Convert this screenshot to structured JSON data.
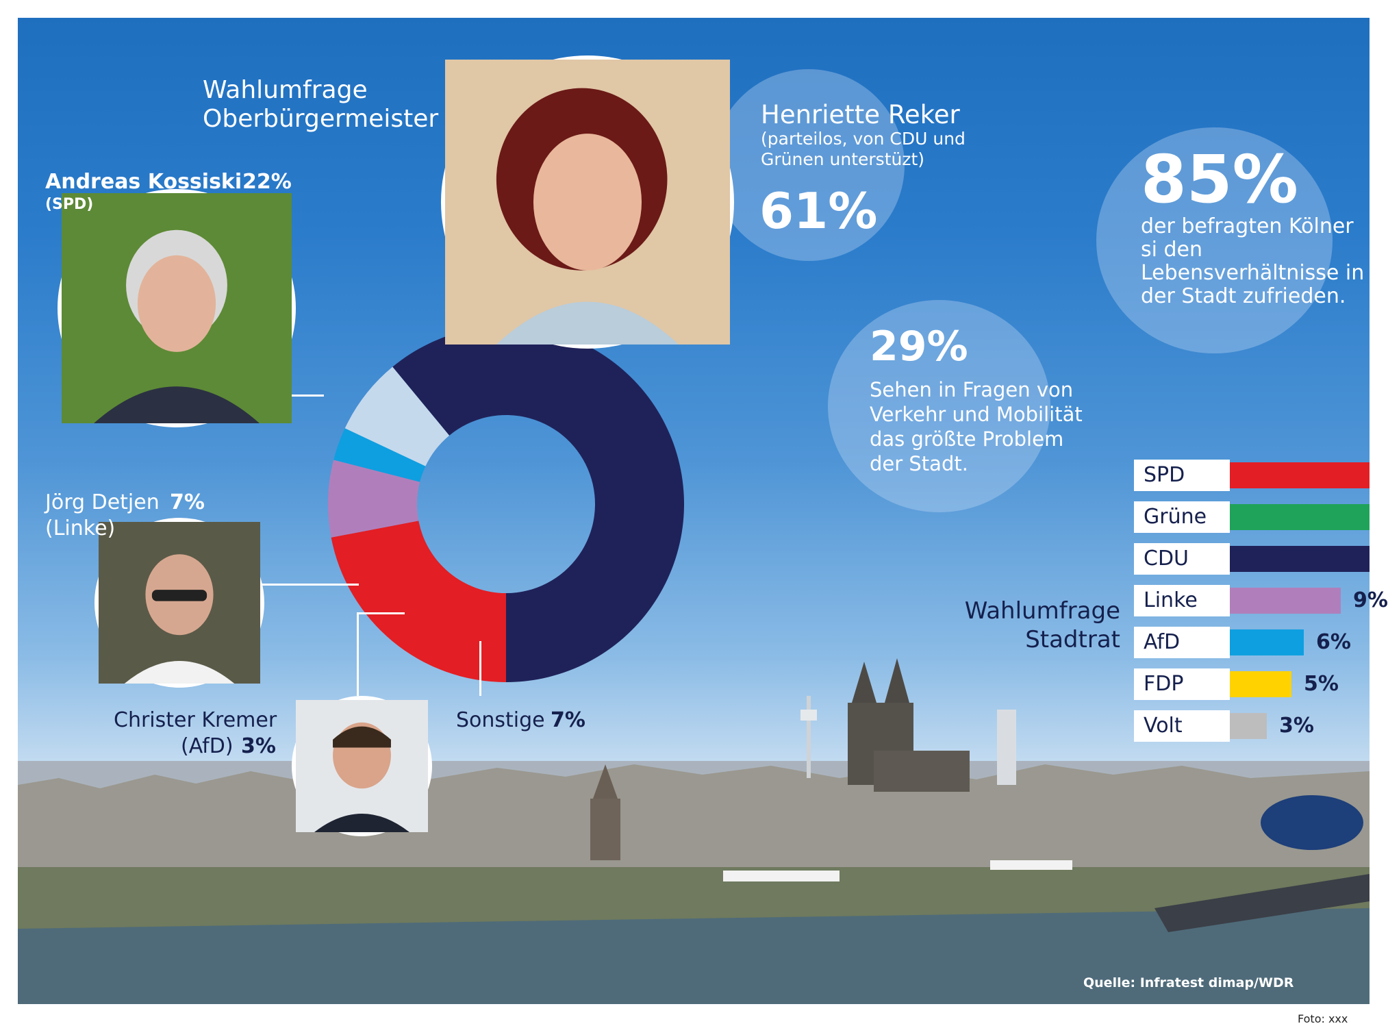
{
  "mayor_poll": {
    "title": "Wahlumfrage Oberbürgermeister",
    "candidates": [
      {
        "name": "Henriette Reker",
        "note": "(parteilos, von CDU und Grünen unterstüzt)",
        "value_label": "61%"
      },
      {
        "name": "Andreas Kossiski",
        "value_label": "22%",
        "party": "(SPD)"
      },
      {
        "name": "Jörg Detjen",
        "value_label": "7%",
        "party": "(Linke)"
      },
      {
        "name": "Christer Kremer",
        "party": "(AfD)",
        "value_label": "3%"
      },
      {
        "name": "Sonstige",
        "value_label": "7%"
      }
    ]
  },
  "facts": [
    {
      "value": "85%",
      "text": "der befragten Kölner si den Lebensverhältnisse in der Stadt zufrieden."
    },
    {
      "value": "29%",
      "text": "Sehen in Fragen von Verkehr und Mobilität das größte Problem der Stadt."
    }
  ],
  "council_poll": {
    "title": "Wahlumfrage Stadtrat"
  },
  "source": "Quelle: Infratest dimap/WDR",
  "photo_credit": "Foto: xxx",
  "colors": {
    "CDU": "#1f2259",
    "SPD": "#e31e24",
    "Linke": "#b07fbb",
    "AfD": "#0e9fe0",
    "Sonstige": "#c5d9ec",
    "Grüne": "#1fa35a",
    "FDP": "#ffd200",
    "Volt": "#bdbdbd"
  },
  "chart_data": [
    {
      "type": "pie",
      "title": "Wahlumfrage Oberbürgermeister",
      "categories": [
        "Henriette Reker",
        "Andreas Kossiski",
        "Jörg Detjen",
        "Christer Kremer",
        "Sonstige"
      ],
      "values": [
        61,
        22,
        7,
        3,
        7
      ],
      "colors": [
        "#1f2259",
        "#e31e24",
        "#b07fbb",
        "#0e9fe0",
        "#c5d9ec"
      ]
    },
    {
      "type": "bar",
      "title": "Wahlumfrage Stadtrat",
      "categories": [
        "SPD",
        "Grüne",
        "CDU",
        "Linke",
        "AfD",
        "FDP",
        "Volt"
      ],
      "values": [
        null,
        null,
        null,
        9,
        6,
        5,
        3
      ],
      "value_labels": [
        "",
        "",
        "",
        "9%",
        "6%",
        "5%",
        "3%"
      ],
      "colors": [
        "#e31e24",
        "#1fa35a",
        "#1f2259",
        "#b07fbb",
        "#0e9fe0",
        "#ffd200",
        "#bdbdbd"
      ]
    }
  ]
}
